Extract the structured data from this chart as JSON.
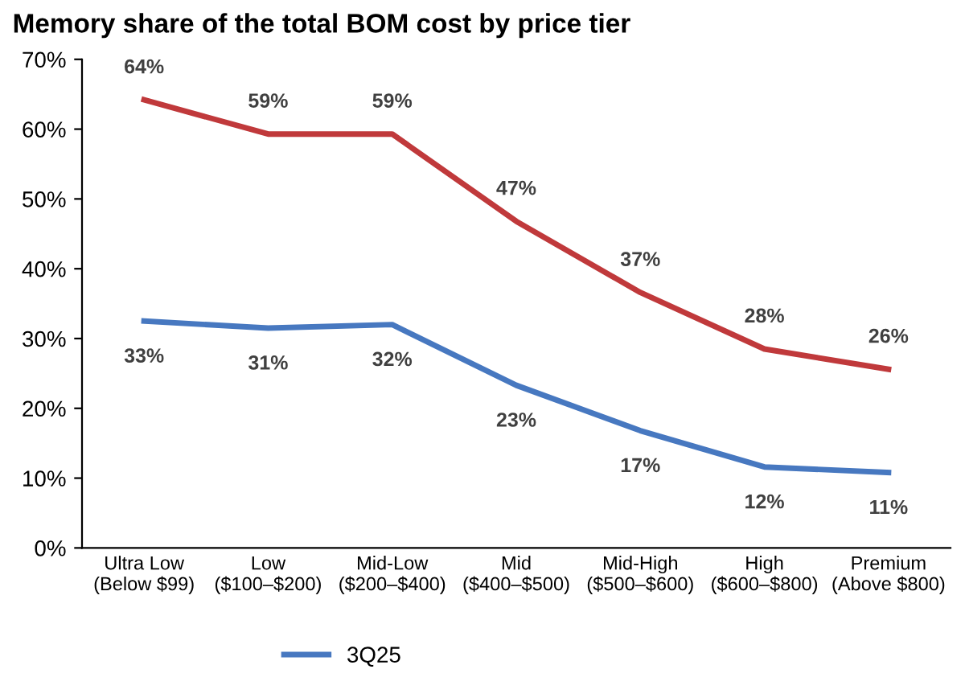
{
  "chart_data": {
    "type": "line",
    "title": "Memory share of the total BOM cost by price tier",
    "categories": [
      "Ultra Low\n(Below $99)",
      "Low\n($100–$200)",
      "Mid-Low\n($200–$400)",
      "Mid\n($400–$500)",
      "Mid-High\n($500–$600)",
      "High\n($600–$800)",
      "Premium\n(Above $800)"
    ],
    "series": [
      {
        "color": "#c0393b",
        "values": [
          64.2,
          59.3,
          59.3,
          46.8,
          36.6,
          28.5,
          25.6
        ],
        "value_labels": [
          "64%",
          "59%",
          "59%",
          "47%",
          "37%",
          "28%",
          "26%"
        ]
      },
      {
        "name": "3Q25",
        "color": "#4778c0",
        "values": [
          32.5,
          31.5,
          32,
          23.3,
          16.8,
          11.6,
          10.8
        ],
        "value_labels": [
          "33%",
          "31%",
          "32%",
          "23%",
          "17%",
          "12%",
          "11%"
        ]
      }
    ],
    "ylim": [
      0,
      70
    ],
    "yticks": [
      {
        "value": 0,
        "label": "0%"
      },
      {
        "value": 10,
        "label": "10%"
      },
      {
        "value": 20,
        "label": "20%"
      },
      {
        "value": 30,
        "label": "30%"
      },
      {
        "value": 40,
        "label": "40%"
      },
      {
        "value": 50,
        "label": "50%"
      },
      {
        "value": 60,
        "label": "60%"
      },
      {
        "value": 70,
        "label": "70%"
      }
    ],
    "legend": "bottom",
    "grid": false,
    "marker": "none",
    "line_style": "solid"
  }
}
